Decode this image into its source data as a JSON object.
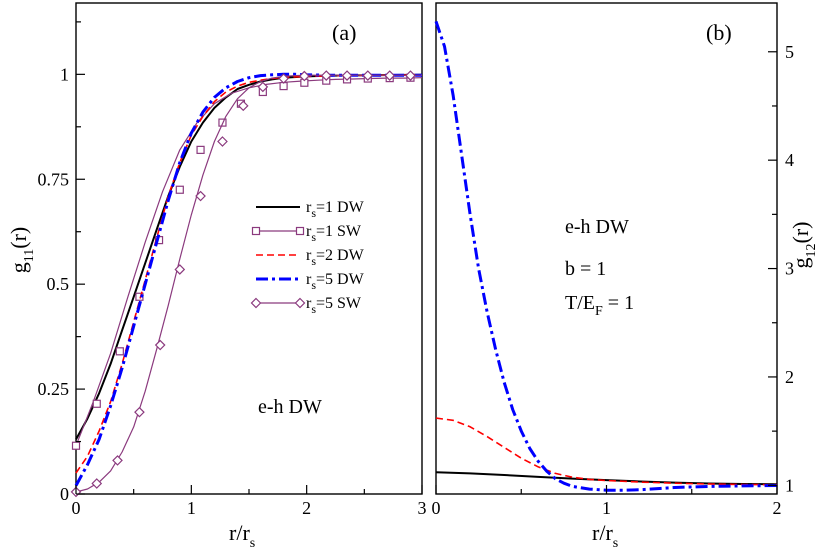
{
  "chart_data": [
    {
      "type": "line",
      "panel_label": "(a)",
      "xlabel": "r/r",
      "xlabel_sub": "s",
      "ylabel": "g",
      "ylabel_sub": "11",
      "ylabel_suffix": "(r)",
      "xlim": [
        0,
        3
      ],
      "ylim": [
        0,
        1.17
      ],
      "x_ticks": [
        0,
        1,
        2,
        3
      ],
      "x_tick_labels": [
        "0",
        "1",
        "2",
        "3"
      ],
      "y_ticks": [
        0,
        0.25,
        0.5,
        0.75,
        1
      ],
      "y_tick_labels": [
        "0",
        "0.25",
        "0.5",
        "0.75",
        "1"
      ],
      "annotation": "e-h DW",
      "legend_position": "center-right",
      "series": [
        {
          "name": "r_s=1 DW",
          "legend_main": "r",
          "legend_sub": "s",
          "legend_rest": "=1 DW",
          "color": "#000000",
          "dash": "",
          "stroke_width": 2,
          "marker": "none",
          "x": [
            0,
            0.1,
            0.2,
            0.3,
            0.4,
            0.5,
            0.6,
            0.7,
            0.8,
            0.9,
            1.0,
            1.1,
            1.2,
            1.3,
            1.4,
            1.5,
            1.6,
            1.7,
            1.8,
            2.0,
            2.2,
            2.5,
            3.0
          ],
          "y": [
            0.13,
            0.18,
            0.24,
            0.31,
            0.39,
            0.47,
            0.55,
            0.63,
            0.71,
            0.78,
            0.84,
            0.885,
            0.92,
            0.945,
            0.965,
            0.975,
            0.983,
            0.988,
            0.992,
            0.995,
            0.997,
            0.998,
            0.999
          ]
        },
        {
          "name": "r_s=1 SW",
          "legend_main": "r",
          "legend_sub": "s",
          "legend_rest": "=1 SW",
          "color": "#8b3a7e",
          "dash": "",
          "stroke_width": 1.2,
          "marker": "square",
          "x": [
            0,
            0.15,
            0.3,
            0.45,
            0.6,
            0.75,
            0.9,
            1.05,
            1.2,
            1.35,
            1.5,
            1.65,
            1.8,
            1.95,
            2.1,
            2.25,
            2.4,
            2.55,
            2.7,
            2.85,
            3.0
          ],
          "y": [
            0.115,
            0.22,
            0.335,
            0.47,
            0.6,
            0.72,
            0.82,
            0.885,
            0.93,
            0.955,
            0.968,
            0.976,
            0.981,
            0.984,
            0.986,
            0.988,
            0.989,
            0.99,
            0.991,
            0.991,
            0.992
          ],
          "marker_x": [
            0,
            0.18,
            0.38,
            0.55,
            0.72,
            0.9,
            1.08,
            1.27,
            1.43,
            1.62,
            1.8,
            1.98,
            2.17,
            2.35,
            2.53,
            2.72,
            2.9
          ],
          "marker_y": [
            0.115,
            0.215,
            0.34,
            0.47,
            0.605,
            0.725,
            0.82,
            0.885,
            0.93,
            0.958,
            0.972,
            0.98,
            0.985,
            0.988,
            0.99,
            0.991,
            0.992
          ]
        },
        {
          "name": "r_s=2 DW",
          "legend_main": "r",
          "legend_sub": "s",
          "legend_rest": "=2 DW",
          "color": "#ff0000",
          "dash": "7,4",
          "stroke_width": 1.6,
          "marker": "none",
          "x": [
            0,
            0.1,
            0.2,
            0.3,
            0.4,
            0.5,
            0.6,
            0.7,
            0.8,
            0.9,
            1.0,
            1.1,
            1.2,
            1.3,
            1.4,
            1.5,
            1.6,
            1.7,
            1.8,
            2.0,
            2.3,
            2.6,
            3.0
          ],
          "y": [
            0.05,
            0.09,
            0.15,
            0.22,
            0.31,
            0.41,
            0.51,
            0.61,
            0.71,
            0.79,
            0.855,
            0.9,
            0.935,
            0.958,
            0.972,
            0.981,
            0.986,
            0.99,
            0.993,
            0.995,
            0.997,
            0.998,
            0.999
          ]
        },
        {
          "name": "r_s=5 DW",
          "legend_main": "r",
          "legend_sub": "s",
          "legend_rest": "=5 DW",
          "color": "#0000ff",
          "dash": "12,4,3,4",
          "stroke_width": 3,
          "marker": "none",
          "x": [
            0,
            0.1,
            0.2,
            0.3,
            0.4,
            0.5,
            0.6,
            0.7,
            0.8,
            0.9,
            1.0,
            1.1,
            1.2,
            1.3,
            1.4,
            1.5,
            1.6,
            1.7,
            1.8,
            1.9,
            2.0,
            2.2,
            2.5,
            3.0
          ],
          "y": [
            0.02,
            0.07,
            0.13,
            0.21,
            0.3,
            0.4,
            0.5,
            0.6,
            0.7,
            0.79,
            0.86,
            0.91,
            0.945,
            0.968,
            0.983,
            0.992,
            0.997,
            0.999,
            1.0,
            1.0,
            0.999,
            0.998,
            0.998,
            0.998
          ]
        },
        {
          "name": "r_s=5 SW",
          "legend_main": "r",
          "legend_sub": "s",
          "legend_rest": "=5 SW",
          "color": "#8b3a7e",
          "dash": "",
          "stroke_width": 1.2,
          "marker": "diamond",
          "x": [
            0,
            0.1,
            0.2,
            0.3,
            0.4,
            0.5,
            0.6,
            0.7,
            0.8,
            0.9,
            1.0,
            1.1,
            1.2,
            1.3,
            1.4,
            1.5,
            1.6,
            1.7,
            1.8,
            1.9,
            2.0,
            2.2,
            2.5,
            3.0
          ],
          "y": [
            0.005,
            0.012,
            0.028,
            0.055,
            0.1,
            0.16,
            0.245,
            0.345,
            0.45,
            0.56,
            0.665,
            0.76,
            0.84,
            0.9,
            0.942,
            0.968,
            0.983,
            0.991,
            0.995,
            0.997,
            0.998,
            0.998,
            0.998,
            0.998
          ],
          "marker_x": [
            0,
            0.18,
            0.36,
            0.55,
            0.73,
            0.9,
            1.08,
            1.27,
            1.45,
            1.62,
            1.8,
            1.98,
            2.17,
            2.35,
            2.53,
            2.72,
            2.9
          ],
          "marker_y": [
            0.005,
            0.025,
            0.08,
            0.195,
            0.355,
            0.535,
            0.71,
            0.84,
            0.925,
            0.97,
            0.99,
            0.996,
            0.997,
            0.997,
            0.997,
            0.997,
            0.997
          ]
        }
      ]
    },
    {
      "type": "line",
      "panel_label": "(b)",
      "xlabel": "r/r",
      "xlabel_sub": "s",
      "ylabel": "g",
      "ylabel_sub": "12",
      "ylabel_suffix": "(r)",
      "y_axis_side": "right",
      "xlim": [
        0,
        2
      ],
      "ylim": [
        0.92,
        5.45
      ],
      "x_ticks": [
        0,
        1,
        2
      ],
      "x_tick_labels": [
        "0",
        "1",
        "2"
      ],
      "y_ticks": [
        1,
        2,
        3,
        4,
        5
      ],
      "y_tick_labels": [
        "1",
        "2",
        "3",
        "4",
        "5"
      ],
      "annotation_lines": [
        {
          "main": "e-h DW",
          "sub": "",
          "rest": ""
        },
        {
          "main": "b = 1",
          "sub": "",
          "rest": ""
        },
        {
          "main": "T/E",
          "sub": "F",
          "rest": " = 1"
        }
      ],
      "series": [
        {
          "name": "r_s=1 DW",
          "color": "#000000",
          "dash": "",
          "stroke_width": 2,
          "x": [
            0,
            0.2,
            0.4,
            0.6,
            0.8,
            1.0,
            1.2,
            1.4,
            1.6,
            1.8,
            2.0
          ],
          "y": [
            1.12,
            1.11,
            1.095,
            1.078,
            1.062,
            1.048,
            1.035,
            1.025,
            1.017,
            1.012,
            1.01
          ]
        },
        {
          "name": "r_s=2 DW",
          "color": "#ff0000",
          "dash": "7,4",
          "stroke_width": 1.6,
          "x": [
            0,
            0.1,
            0.2,
            0.3,
            0.4,
            0.5,
            0.6,
            0.7,
            0.8,
            0.9,
            1.0,
            1.2,
            1.4,
            1.6,
            1.8,
            2.0
          ],
          "y": [
            1.62,
            1.6,
            1.54,
            1.45,
            1.35,
            1.25,
            1.17,
            1.11,
            1.075,
            1.055,
            1.045,
            1.03,
            1.02,
            1.012,
            1.008,
            1.006
          ]
        },
        {
          "name": "r_s=5 DW",
          "color": "#0000ff",
          "dash": "12,4,3,4",
          "stroke_width": 3,
          "x": [
            0,
            0.05,
            0.1,
            0.15,
            0.2,
            0.25,
            0.3,
            0.35,
            0.4,
            0.45,
            0.5,
            0.55,
            0.6,
            0.65,
            0.7,
            0.75,
            0.8,
            0.9,
            1.0,
            1.1,
            1.2,
            1.3,
            1.4,
            1.6,
            1.8,
            2.0
          ],
          "y": [
            5.28,
            5.05,
            4.6,
            4.05,
            3.5,
            3.0,
            2.6,
            2.25,
            1.95,
            1.7,
            1.5,
            1.34,
            1.22,
            1.13,
            1.06,
            1.02,
            0.99,
            0.965,
            0.955,
            0.955,
            0.96,
            0.97,
            0.98,
            0.99,
            0.995,
            0.998
          ]
        }
      ]
    }
  ]
}
